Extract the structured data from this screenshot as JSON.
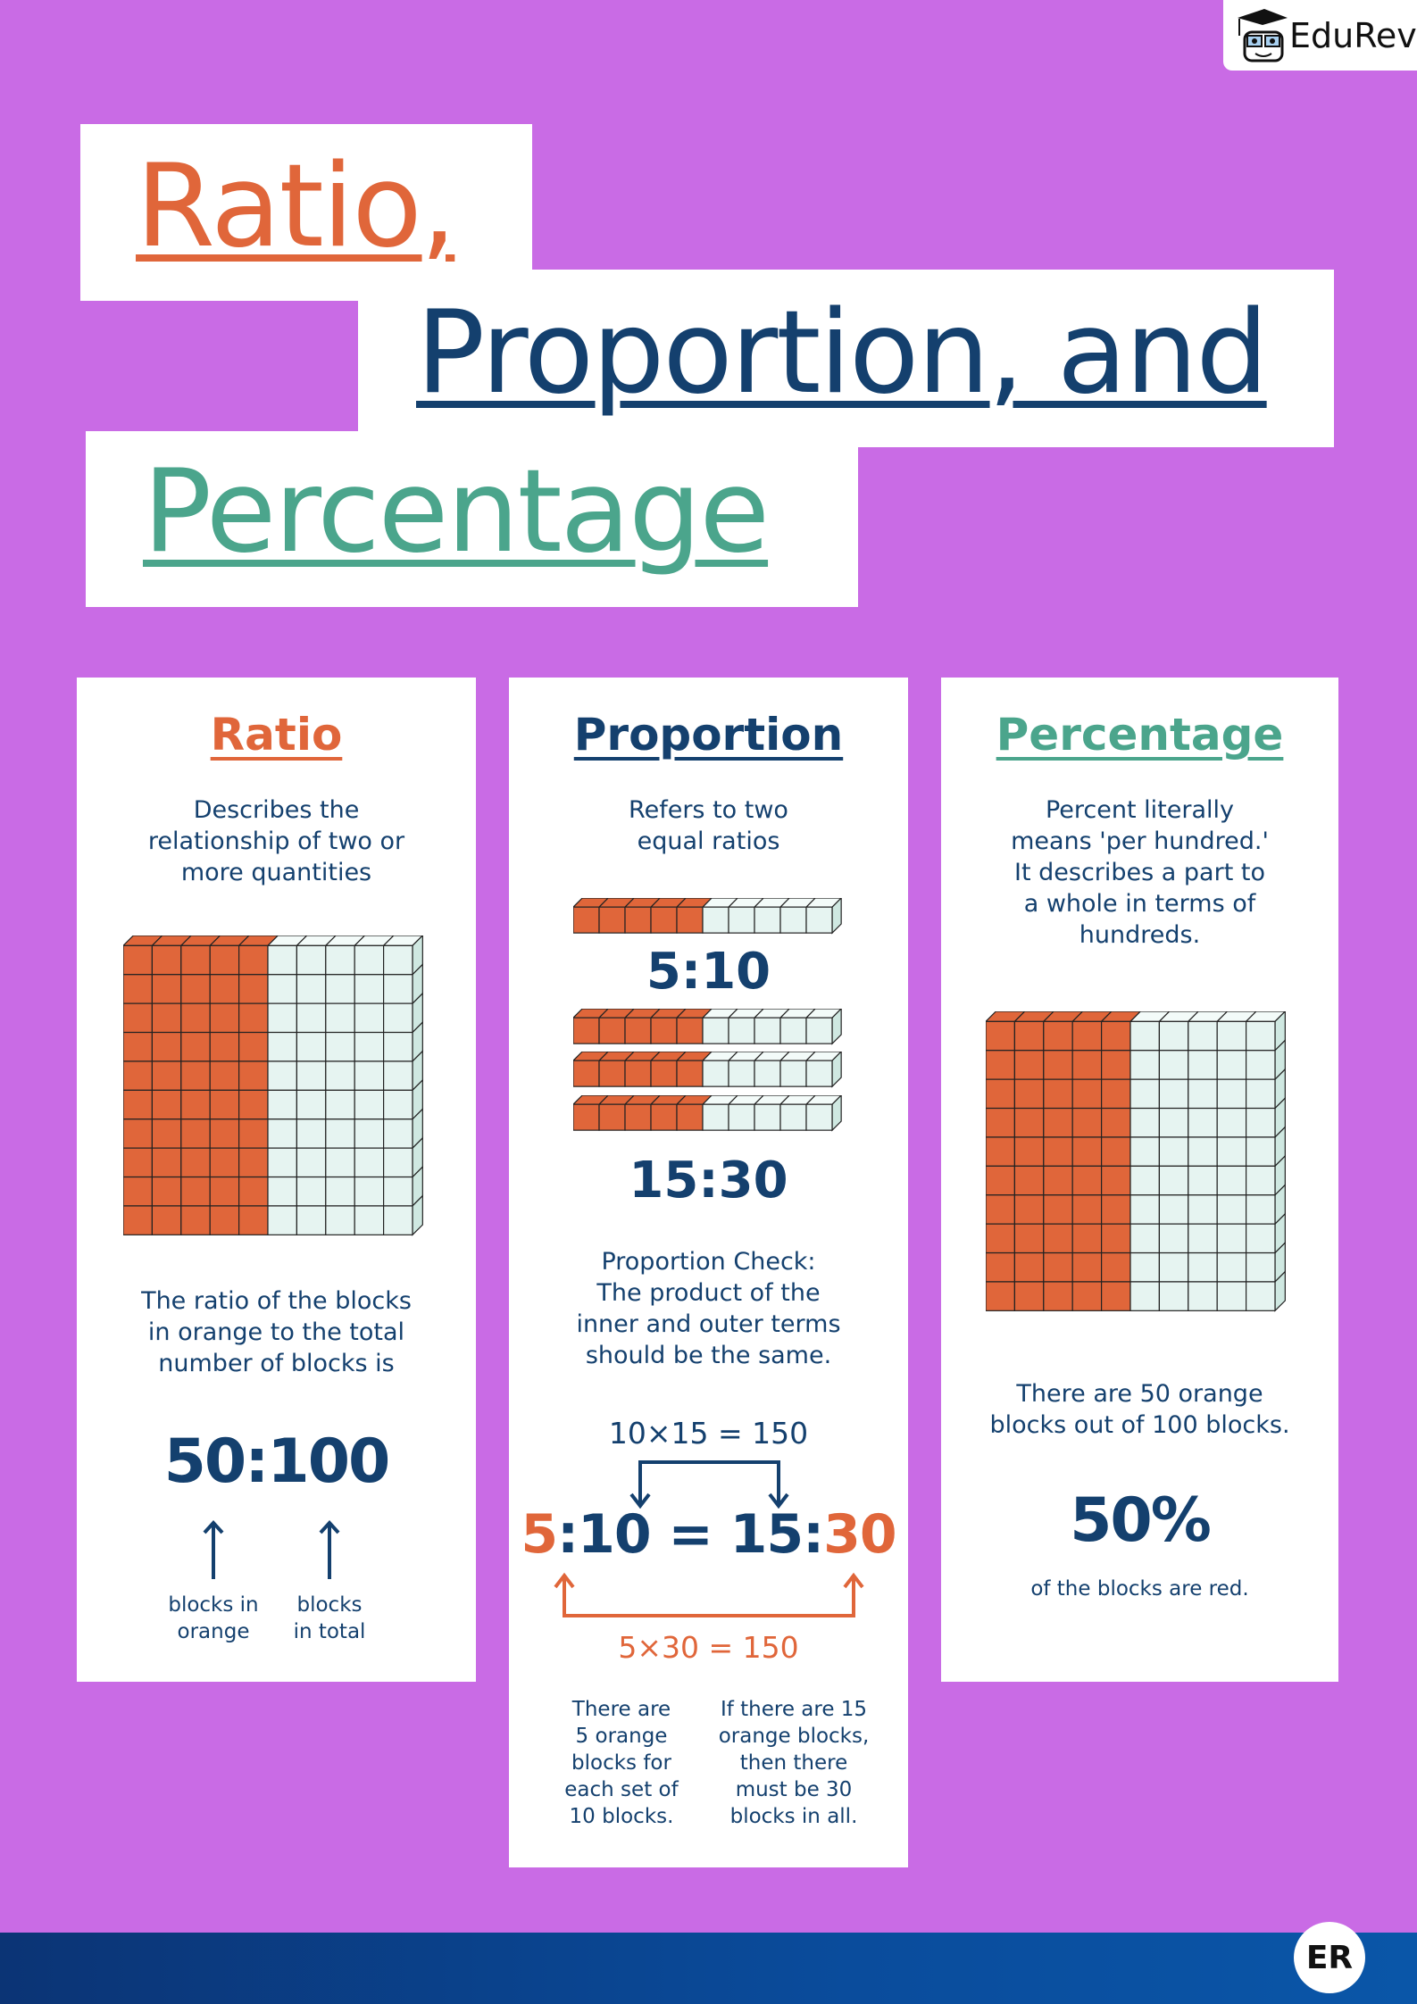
{
  "logo": {
    "brand": "EduRev",
    "footer_badge": "ER"
  },
  "title": {
    "line1": "Ratio,",
    "line2": "Proportion, and",
    "line3": "Percentage"
  },
  "colors": {
    "background": "#C96BE5",
    "orange": "#E0663A",
    "navy": "#14406E",
    "green": "#4BA58C",
    "block_empty": "#E6F4F1"
  },
  "ratio": {
    "heading": "Ratio",
    "description": [
      "Describes the",
      "relationship of two or",
      "more quantities"
    ],
    "grid": {
      "rows": 10,
      "cols": 10,
      "orange_cols": 5
    },
    "explanation": [
      "The ratio of the blocks",
      "in orange to the total",
      "number of blocks is"
    ],
    "value": "50:100",
    "label_left": [
      "blocks in",
      "orange"
    ],
    "label_right": [
      "blocks",
      "in total"
    ]
  },
  "proportion": {
    "heading": "Proportion",
    "description": [
      "Refers to two",
      "equal ratios"
    ],
    "bar": {
      "cells": 10,
      "orange_cells": 5
    },
    "ratio1": "5:10",
    "ratio2": "15:30",
    "check": [
      "Proportion Check:",
      "The product of the",
      "inner and outer terms",
      "should be the same."
    ],
    "inner_product": "10×15 = 150",
    "equation": {
      "a": "5",
      "b": ":10",
      "eq": " = ",
      "c": "15:",
      "d": "30"
    },
    "outer_product": "5×30 = 150",
    "note_left": [
      "There are",
      "5 orange",
      "blocks for",
      "each set of",
      "10 blocks."
    ],
    "note_right": [
      "If there are 15",
      "orange blocks,",
      "then there",
      "must be 30",
      "blocks in all."
    ]
  },
  "percentage": {
    "heading": "Percentage",
    "description": [
      "Percent literally",
      "means 'per hundred.'",
      "It describes a part to",
      "a whole in terms of",
      "hundreds."
    ],
    "grid": {
      "rows": 10,
      "cols": 10,
      "orange_cols": 5
    },
    "explanation": [
      "There are 50 orange",
      "blocks out of 100 blocks."
    ],
    "value": "50%",
    "caption": "of the blocks are red."
  }
}
